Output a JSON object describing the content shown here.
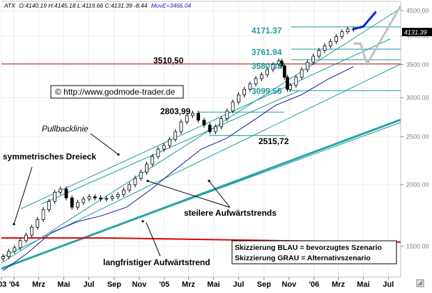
{
  "header": {
    "symbol": "ATX",
    "ohlc": "O:4140.19 H:4145.18 L:4119.66 C:4131.39 -8.44",
    "ma": "MovE=3466.04"
  },
  "chart_data": {
    "type": "candlestick",
    "y_scale": "log",
    "ylim": [
      1300,
      4700
    ],
    "xlim": [
      "2003-12-01",
      "2006-07-31"
    ],
    "x_ticks": [
      {
        "label": "'03",
        "date": "2003-12-01"
      },
      {
        "label": "'04",
        "date": "2004-01-01"
      },
      {
        "label": "Mrz",
        "date": "2004-03-01"
      },
      {
        "label": "Mai",
        "date": "2004-05-01"
      },
      {
        "label": "Jul",
        "date": "2004-07-01"
      },
      {
        "label": "Sep",
        "date": "2004-09-01"
      },
      {
        "label": "Nov",
        "date": "2004-11-01"
      },
      {
        "label": "'05",
        "date": "2005-01-01"
      },
      {
        "label": "Mrz",
        "date": "2005-03-01"
      },
      {
        "label": "Mai",
        "date": "2005-05-01"
      },
      {
        "label": "Jul",
        "date": "2005-07-01"
      },
      {
        "label": "Sep",
        "date": "2005-09-01"
      },
      {
        "label": "Nov",
        "date": "2005-11-01"
      },
      {
        "label": "'06",
        "date": "2006-01-01"
      },
      {
        "label": "Mrz",
        "date": "2006-03-01"
      },
      {
        "label": "Mai",
        "date": "2006-05-01"
      },
      {
        "label": "Jul",
        "date": "2006-07-01"
      }
    ],
    "y_ticks": [
      1500,
      2000,
      2500,
      3000,
      3500,
      4000,
      4500
    ],
    "y_tick_labels": [
      "1500.00",
      "2000.00",
      "2500.00",
      "3000.00",
      "3500.00",
      "4000.00",
      "4500.00"
    ],
    "series": [
      {
        "name": "ATX",
        "kind": "price",
        "points": [
          [
            "2003-12-05",
            1430
          ],
          [
            "2003-12-19",
            1465
          ],
          [
            "2004-01-02",
            1490
          ],
          [
            "2004-01-16",
            1540
          ],
          [
            "2004-01-30",
            1580
          ],
          [
            "2004-02-13",
            1640
          ],
          [
            "2004-02-27",
            1700
          ],
          [
            "2004-03-12",
            1780
          ],
          [
            "2004-03-26",
            1850
          ],
          [
            "2004-04-09",
            1930
          ],
          [
            "2004-04-23",
            1960
          ],
          [
            "2004-05-07",
            1880
          ],
          [
            "2004-05-21",
            1800
          ],
          [
            "2004-06-04",
            1840
          ],
          [
            "2004-06-18",
            1870
          ],
          [
            "2004-07-02",
            1890
          ],
          [
            "2004-07-16",
            1880
          ],
          [
            "2004-07-30",
            1870
          ],
          [
            "2004-08-13",
            1875
          ],
          [
            "2004-08-27",
            1890
          ],
          [
            "2004-09-10",
            1910
          ],
          [
            "2004-09-24",
            1950
          ],
          [
            "2004-10-08",
            2000
          ],
          [
            "2004-10-22",
            2060
          ],
          [
            "2004-11-05",
            2120
          ],
          [
            "2004-11-19",
            2200
          ],
          [
            "2004-12-03",
            2280
          ],
          [
            "2004-12-17",
            2360
          ],
          [
            "2004-12-31",
            2400
          ],
          [
            "2005-01-14",
            2470
          ],
          [
            "2005-01-28",
            2560
          ],
          [
            "2005-02-11",
            2680
          ],
          [
            "2005-02-25",
            2760
          ],
          [
            "2005-03-11",
            2790
          ],
          [
            "2005-03-25",
            2700
          ],
          [
            "2005-04-08",
            2640
          ],
          [
            "2005-04-22",
            2560
          ],
          [
            "2005-05-06",
            2620
          ],
          [
            "2005-05-20",
            2720
          ],
          [
            "2005-06-03",
            2820
          ],
          [
            "2005-06-17",
            2940
          ],
          [
            "2005-07-01",
            3040
          ],
          [
            "2005-07-15",
            3120
          ],
          [
            "2005-07-29",
            3200
          ],
          [
            "2005-08-12",
            3280
          ],
          [
            "2005-08-26",
            3340
          ],
          [
            "2005-09-09",
            3420
          ],
          [
            "2005-09-23",
            3500
          ],
          [
            "2005-10-07",
            3560
          ],
          [
            "2005-10-14",
            3480
          ],
          [
            "2005-10-21",
            3300
          ],
          [
            "2005-10-28",
            3120
          ],
          [
            "2005-11-04",
            3180
          ],
          [
            "2005-11-18",
            3300
          ],
          [
            "2005-12-02",
            3420
          ],
          [
            "2005-12-16",
            3540
          ],
          [
            "2005-12-30",
            3640
          ],
          [
            "2006-01-13",
            3740
          ],
          [
            "2006-01-27",
            3820
          ],
          [
            "2006-02-10",
            3900
          ],
          [
            "2006-02-24",
            3990
          ],
          [
            "2006-03-10",
            4080
          ],
          [
            "2006-03-24",
            4130
          ],
          [
            "2006-04-07",
            4131
          ]
        ]
      },
      {
        "name": "MovE",
        "kind": "moving-average",
        "points": [
          [
            "2003-12-05",
            1340
          ],
          [
            "2004-02-01",
            1450
          ],
          [
            "2004-04-01",
            1600
          ],
          [
            "2004-06-01",
            1680
          ],
          [
            "2004-08-01",
            1730
          ],
          [
            "2004-10-01",
            1800
          ],
          [
            "2004-12-01",
            1960
          ],
          [
            "2005-02-01",
            2160
          ],
          [
            "2005-04-01",
            2360
          ],
          [
            "2005-06-01",
            2480
          ],
          [
            "2005-08-01",
            2680
          ],
          [
            "2005-10-01",
            2900
          ],
          [
            "2005-12-01",
            3040
          ],
          [
            "2006-02-01",
            3260
          ],
          [
            "2006-04-07",
            3466
          ]
        ]
      }
    ],
    "horizontal_lines": [
      {
        "value": 3510.5,
        "label": "3510,50",
        "color": "#cc0000"
      },
      {
        "value": 1560,
        "label": "",
        "color": "#dd0000"
      },
      {
        "value": 4171.37,
        "label": "4171.37",
        "color": "#1a9aa0"
      },
      {
        "value": 3761.94,
        "label": "3761.94",
        "color": "#1a9aa0"
      },
      {
        "value": 3580.33,
        "label": "3580.33",
        "color": "#1a9aa0"
      },
      {
        "value": 3099.56,
        "label": "3099.56",
        "color": "#1a9aa0"
      },
      {
        "value": 2803.99,
        "label": "2803,99",
        "color": "#1a9aa0"
      },
      {
        "value": 2515.72,
        "label": "2515,72",
        "color": "#1a9aa0"
      }
    ],
    "current_value_label": "4131.39",
    "scenario_blue": [
      [
        "2006-04-07",
        4131
      ],
      [
        "2006-05-01",
        4180
      ],
      [
        "2006-06-01",
        4480
      ]
    ],
    "scenario_gray": [
      [
        "2006-04-07",
        3860
      ],
      [
        "2006-04-24",
        3860
      ],
      [
        "2006-05-10",
        3510
      ],
      [
        "2006-07-31",
        4600
      ]
    ],
    "annotations": {
      "copyright": "© http://www.godmode-trader.de",
      "pullback": "Pullbacklinie",
      "triangle": "symmetrisches Dreieck",
      "steep_trends": "steilere Aufwärtstrends",
      "long_trend": "langfristiger Aufwärtstrend",
      "legend_blue": "Skizzierung BLAU = bevorzugtes Szenario",
      "legend_gray": "Skizzierung GRAU = Alternativszenario"
    },
    "colors": {
      "channel": "#1a9aa0",
      "long_trend": "#26a4a6",
      "ma": "#1010a0",
      "resistance": "#cc0000",
      "scenario_blue": "#0020e0",
      "scenario_gray": "#c0c0c0",
      "price": "#000000"
    }
  }
}
